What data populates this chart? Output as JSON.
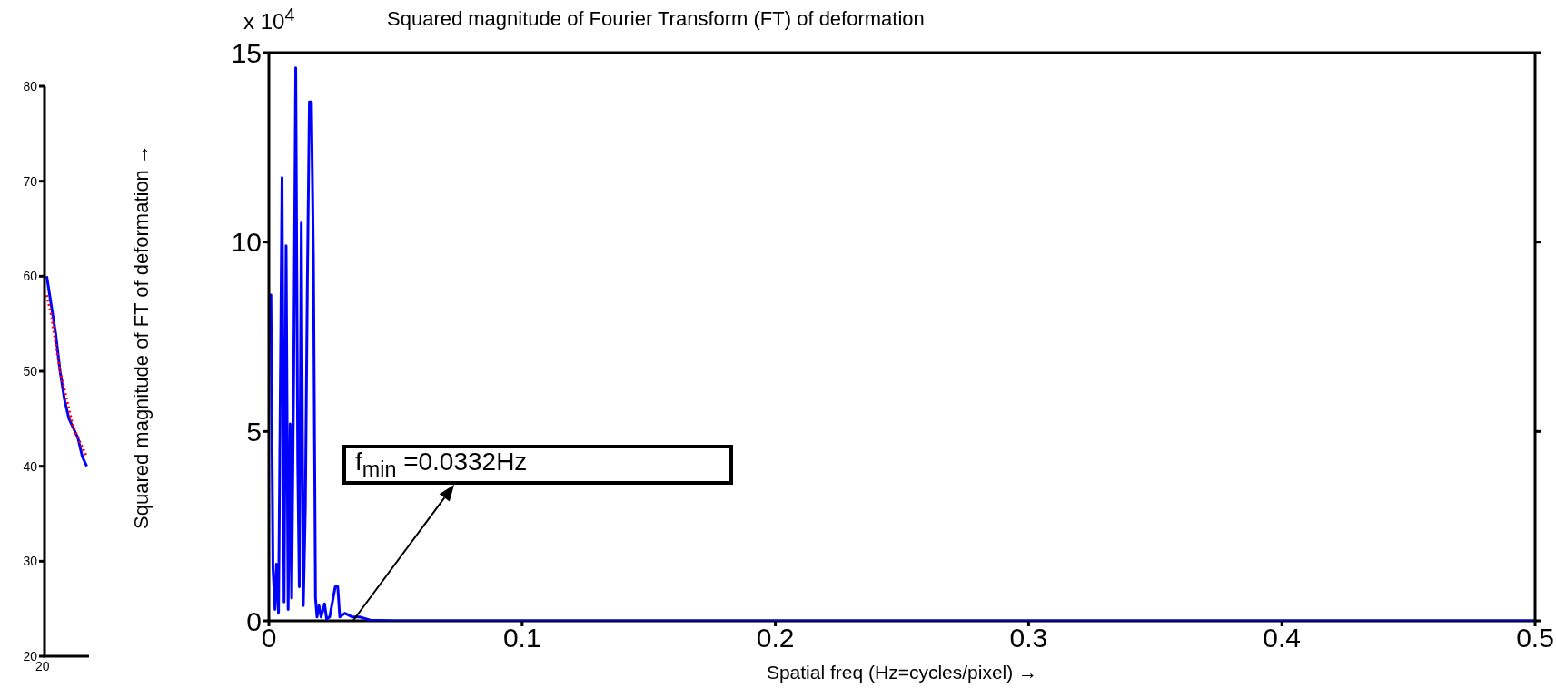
{
  "chart_data": [
    {
      "type": "line",
      "ylim": [
        20,
        80
      ],
      "yticks": [
        20,
        30,
        40,
        50,
        60,
        70,
        80
      ],
      "categories": [
        null,
        null,
        null,
        null,
        null,
        null,
        null,
        null,
        null,
        null
      ],
      "tick_labels": "y",
      "marker": "none",
      "annotations": [
        "20"
      ],
      "series": [
        {
          "color": "#0000ff",
          "line_style": "solid",
          "values": [
            60,
            57,
            54,
            50,
            47,
            45,
            44,
            43,
            41,
            40
          ]
        },
        {
          "color": "#ff0000",
          "line_style": "dotted",
          "values": [
            58,
            56,
            53,
            50,
            48,
            46,
            44,
            43,
            42,
            41
          ]
        }
      ]
    },
    {
      "type": "line",
      "title": "Squared magnitude of Fourier Transform (FT) of deformation",
      "xlabel": "Spatial freq (Hz=cycles/pixel) →",
      "ylabel": "Squared magnitude of FT of deformation →",
      "xlim": [
        0,
        0.5
      ],
      "xticks": [
        0,
        0.1,
        0.2,
        0.3,
        0.4,
        0.5
      ],
      "ylim": [
        0,
        15
      ],
      "yticks": [
        0,
        5,
        10,
        15
      ],
      "marker": "none",
      "annotations": [
        "x 10$^{4}$",
        {
          "text": "f$_{min}$ =0.0332Hz",
          "x": 0.0332,
          "y": 0
        }
      ],
      "series": [
        {
          "color": "#0000ff",
          "line_style": "solid",
          "x": [
            0,
            0.0008,
            0.0016,
            0.0024,
            0.003,
            0.0038,
            0.0045,
            0.0052,
            0.006,
            0.0068,
            0.0076,
            0.0084,
            0.009,
            0.0098,
            0.0106,
            0.0114,
            0.012,
            0.0128,
            0.0136,
            0.0144,
            0.0152,
            0.016,
            0.0168,
            0.0176,
            0.0184,
            0.019,
            0.0198,
            0.0206,
            0.022,
            0.0228,
            0.024,
            0.0262,
            0.0272,
            0.028,
            0.03,
            0.033,
            0.036,
            0.04,
            0.05,
            0.1,
            0.2,
            0.3,
            0.4,
            0.5
          ],
          "values": [
            8.6,
            8.6,
            1.4,
            0.3,
            1.5,
            0.2,
            6,
            11.7,
            0.5,
            9.9,
            0.3,
            5.2,
            0.6,
            6.5,
            14.6,
            4.2,
            0.9,
            10.5,
            0.4,
            3,
            9,
            13.7,
            13.7,
            9.5,
            0.6,
            0.1,
            0.4,
            0.1,
            0.45,
            0.05,
            0.1,
            0.9,
            0.9,
            0.1,
            0.2,
            0.1,
            0.1,
            0.02,
            0,
            0,
            0,
            0,
            0,
            0
          ]
        }
      ]
    }
  ]
}
